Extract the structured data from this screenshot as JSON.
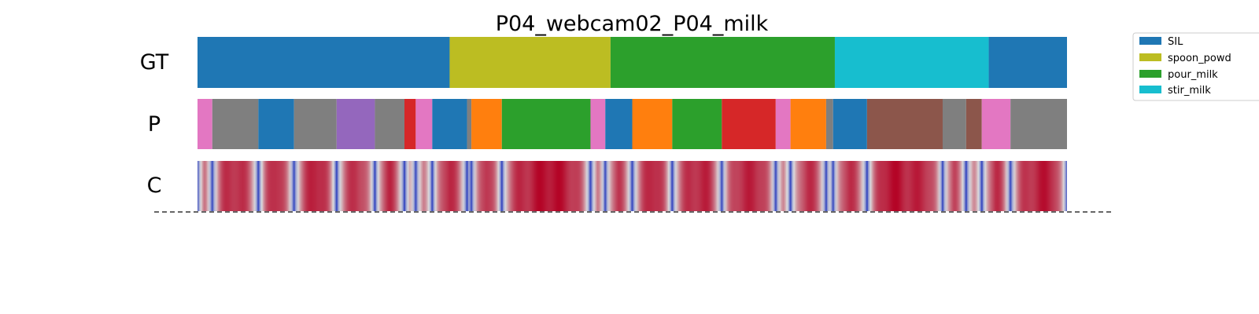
{
  "chart_data": {
    "type": "segmentation-timeline",
    "title": "P04_webcam02_P04_milk",
    "rows": [
      {
        "label": "GT",
        "kind": "segments"
      },
      {
        "label": "P",
        "kind": "segments"
      },
      {
        "label": "C",
        "kind": "confidence"
      }
    ],
    "legend": {
      "placement": "upper-right-outside",
      "entries": [
        {
          "name": "SIL",
          "color": "#1f77b4"
        },
        {
          "name": "spoon_powd",
          "color": "#bcbd22"
        },
        {
          "name": "pour_milk",
          "color": "#2ca02c"
        },
        {
          "name": "stir_milk",
          "color": "#17becf"
        }
      ]
    },
    "x_range": [
      0,
      1
    ],
    "gt_segments": [
      {
        "start": 0.0,
        "end": 0.29,
        "color": "#1f77b4"
      },
      {
        "start": 0.29,
        "end": 0.475,
        "color": "#bcbd22"
      },
      {
        "start": 0.475,
        "end": 0.733,
        "color": "#2ca02c"
      },
      {
        "start": 0.733,
        "end": 0.91,
        "color": "#17becf"
      },
      {
        "start": 0.91,
        "end": 1.0,
        "color": "#1f77b4"
      }
    ],
    "pred_segments": [
      {
        "start": 0.0,
        "end": 0.017,
        "color": "#e377c2"
      },
      {
        "start": 0.017,
        "end": 0.07,
        "color": "#7f7f7f"
      },
      {
        "start": 0.07,
        "end": 0.111,
        "color": "#1f77b4"
      },
      {
        "start": 0.111,
        "end": 0.16,
        "color": "#7f7f7f"
      },
      {
        "start": 0.16,
        "end": 0.204,
        "color": "#9467bd"
      },
      {
        "start": 0.204,
        "end": 0.238,
        "color": "#7f7f7f"
      },
      {
        "start": 0.238,
        "end": 0.251,
        "color": "#d62728"
      },
      {
        "start": 0.251,
        "end": 0.27,
        "color": "#e377c2"
      },
      {
        "start": 0.27,
        "end": 0.31,
        "color": "#1f77b4"
      },
      {
        "start": 0.31,
        "end": 0.315,
        "color": "#7f7f7f"
      },
      {
        "start": 0.315,
        "end": 0.35,
        "color": "#ff7f0e"
      },
      {
        "start": 0.35,
        "end": 0.452,
        "color": "#2ca02c"
      },
      {
        "start": 0.452,
        "end": 0.469,
        "color": "#e377c2"
      },
      {
        "start": 0.469,
        "end": 0.5,
        "color": "#1f77b4"
      },
      {
        "start": 0.5,
        "end": 0.546,
        "color": "#ff7f0e"
      },
      {
        "start": 0.546,
        "end": 0.603,
        "color": "#2ca02c"
      },
      {
        "start": 0.603,
        "end": 0.665,
        "color": "#d62728"
      },
      {
        "start": 0.665,
        "end": 0.682,
        "color": "#e377c2"
      },
      {
        "start": 0.682,
        "end": 0.723,
        "color": "#ff7f0e"
      },
      {
        "start": 0.723,
        "end": 0.731,
        "color": "#7f7f7f"
      },
      {
        "start": 0.731,
        "end": 0.77,
        "color": "#1f77b4"
      },
      {
        "start": 0.77,
        "end": 0.857,
        "color": "#8c564b"
      },
      {
        "start": 0.857,
        "end": 0.884,
        "color": "#7f7f7f"
      },
      {
        "start": 0.884,
        "end": 0.902,
        "color": "#8c564b"
      },
      {
        "start": 0.902,
        "end": 0.935,
        "color": "#e377c2"
      },
      {
        "start": 0.935,
        "end": 1.0,
        "color": "#7f7f7f"
      }
    ],
    "confidence": {
      "colormap": "coolwarm",
      "color_low": "#3b4cc0",
      "color_mid": "#dddddd",
      "color_high": "#b40426",
      "segment_boundaries": [
        0.017,
        0.07,
        0.111,
        0.16,
        0.204,
        0.238,
        0.251,
        0.27,
        0.31,
        0.315,
        0.35,
        0.452,
        0.469,
        0.5,
        0.546,
        0.603,
        0.665,
        0.682,
        0.723,
        0.731,
        0.77,
        0.857,
        0.884,
        0.902,
        0.935
      ],
      "baseline": 0.95
    }
  }
}
